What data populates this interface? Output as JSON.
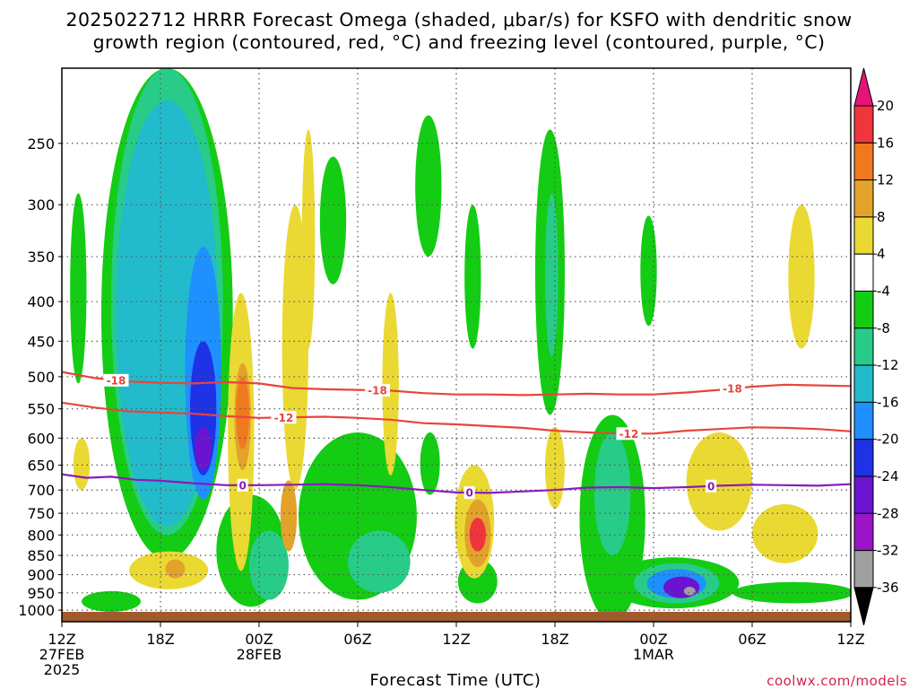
{
  "title": {
    "line1": "2025022712 HRRR Forecast Omega (shaded, μbar/s) for KSFO with dendritic snow",
    "line2": "growth region (contoured, red, °C) and freezing level (contoured, purple, °C)"
  },
  "credit": "coolwx.com/models",
  "chart_data": {
    "type": "heatmap",
    "title": "2025022712 HRRR Forecast Omega (shaded, μbar/s) for KSFO with dendritic snow growth region (contoured, red, °C) and freezing level (contoured, purple, °C)",
    "xlabel": "Forecast Time (UTC)",
    "ylabel": "",
    "x_ticks": [
      {
        "hour": 0,
        "lines": [
          "12Z",
          "27FEB",
          "2025"
        ]
      },
      {
        "hour": 6,
        "lines": [
          "18Z"
        ]
      },
      {
        "hour": 12,
        "lines": [
          "00Z",
          "28FEB"
        ]
      },
      {
        "hour": 18,
        "lines": [
          "06Z"
        ]
      },
      {
        "hour": 24,
        "lines": [
          "12Z"
        ]
      },
      {
        "hour": 30,
        "lines": [
          "18Z"
        ]
      },
      {
        "hour": 36,
        "lines": [
          "00Z",
          "1MAR"
        ]
      },
      {
        "hour": 42,
        "lines": [
          "06Z"
        ]
      },
      {
        "hour": 48,
        "lines": [
          "12Z"
        ]
      }
    ],
    "xlim": [
      0,
      48
    ],
    "y_ticks": [
      250,
      300,
      350,
      400,
      450,
      500,
      550,
      600,
      650,
      700,
      750,
      800,
      850,
      900,
      950,
      1000
    ],
    "y_axis": "pressure (hPa), log scale, inverted",
    "ylim": [
      1035,
      200
    ],
    "grid": true,
    "colorbar": {
      "labels": [
        "20",
        "16",
        "12",
        "8",
        "4",
        "-4",
        "-8",
        "-12",
        "-16",
        "-20",
        "-24",
        "-28",
        "-32",
        "-36"
      ],
      "levels": [
        {
          "lo": 20,
          "hi": null,
          "color": "#e6137a"
        },
        {
          "lo": 16,
          "hi": 20,
          "color": "#f0353d"
        },
        {
          "lo": 12,
          "hi": 16,
          "color": "#f0781e"
        },
        {
          "lo": 8,
          "hi": 12,
          "color": "#e3a32b"
        },
        {
          "lo": 4,
          "hi": 8,
          "color": "#ebd933"
        },
        {
          "lo": -4,
          "hi": 4,
          "color": "#ffffff"
        },
        {
          "lo": -8,
          "hi": -4,
          "color": "#14cc14"
        },
        {
          "lo": -12,
          "hi": -8,
          "color": "#28cc88"
        },
        {
          "lo": -16,
          "hi": -12,
          "color": "#22bbcc"
        },
        {
          "lo": -20,
          "hi": -16,
          "color": "#1e90ff"
        },
        {
          "lo": -24,
          "hi": -20,
          "color": "#1e32e6"
        },
        {
          "lo": -28,
          "hi": -24,
          "color": "#6a14d2"
        },
        {
          "lo": -32,
          "hi": -28,
          "color": "#9b14c8"
        },
        {
          "lo": -36,
          "hi": -32,
          "color": "#a0a0a0"
        },
        {
          "lo": null,
          "hi": -36,
          "color": "#000000"
        }
      ]
    },
    "surface_color": "#a05a2c",
    "contours": [
      {
        "name": "-18",
        "color": "#e8443c",
        "labels": [
          {
            "hour": 3.3,
            "text": "-18"
          },
          {
            "hour": 19.2,
            "text": "-18"
          },
          {
            "hour": 40.8,
            "text": "-18"
          }
        ],
        "points": [
          [
            0,
            493
          ],
          [
            2,
            502
          ],
          [
            4,
            507
          ],
          [
            6,
            509
          ],
          [
            8,
            510
          ],
          [
            10,
            508
          ],
          [
            12,
            510
          ],
          [
            14,
            517
          ],
          [
            16,
            519
          ],
          [
            18,
            520
          ],
          [
            20,
            521
          ],
          [
            22,
            525
          ],
          [
            24,
            527
          ],
          [
            26,
            527
          ],
          [
            28,
            528
          ],
          [
            30,
            527
          ],
          [
            32,
            526
          ],
          [
            34,
            527
          ],
          [
            36,
            527
          ],
          [
            38,
            524
          ],
          [
            40,
            520
          ],
          [
            42,
            515
          ],
          [
            44,
            512
          ],
          [
            46,
            513
          ],
          [
            48,
            514
          ]
        ]
      },
      {
        "name": "-12",
        "color": "#e8443c",
        "labels": [
          {
            "hour": 13.5,
            "text": "-12"
          },
          {
            "hour": 34.5,
            "text": "-12"
          }
        ],
        "points": [
          [
            0,
            540
          ],
          [
            2,
            548
          ],
          [
            4,
            554
          ],
          [
            6,
            556
          ],
          [
            8,
            558
          ],
          [
            10,
            562
          ],
          [
            12,
            565
          ],
          [
            14,
            564
          ],
          [
            16,
            563
          ],
          [
            18,
            565
          ],
          [
            20,
            568
          ],
          [
            22,
            574
          ],
          [
            24,
            576
          ],
          [
            26,
            579
          ],
          [
            28,
            582
          ],
          [
            30,
            587
          ],
          [
            32,
            590
          ],
          [
            34,
            592
          ],
          [
            36,
            592
          ],
          [
            38,
            587
          ],
          [
            40,
            584
          ],
          [
            42,
            581
          ],
          [
            44,
            582
          ],
          [
            46,
            584
          ],
          [
            48,
            588
          ]
        ]
      },
      {
        "name": "0",
        "color": "#8a1ab8",
        "labels": [
          {
            "hour": 11,
            "text": "0"
          },
          {
            "hour": 24.8,
            "text": "0"
          },
          {
            "hour": 39.5,
            "text": "0"
          }
        ],
        "points": [
          [
            0,
            668
          ],
          [
            1.5,
            675
          ],
          [
            3,
            673
          ],
          [
            4.5,
            679
          ],
          [
            6,
            681
          ],
          [
            8,
            686
          ],
          [
            10,
            690
          ],
          [
            12,
            690
          ],
          [
            14,
            689
          ],
          [
            16,
            688
          ],
          [
            18,
            690
          ],
          [
            20,
            694
          ],
          [
            22,
            700
          ],
          [
            24,
            705
          ],
          [
            26,
            706
          ],
          [
            28,
            703
          ],
          [
            30,
            700
          ],
          [
            32,
            695
          ],
          [
            34,
            694
          ],
          [
            36,
            696
          ],
          [
            38,
            694
          ],
          [
            40,
            691
          ],
          [
            42,
            689
          ],
          [
            44,
            690
          ],
          [
            46,
            691
          ],
          [
            48,
            688
          ]
        ]
      }
    ],
    "shaded_regions": [
      {
        "level": -4,
        "center": [
          6.4,
          490
        ],
        "radius": [
          4.0,
          370
        ]
      },
      {
        "level": -8,
        "center": [
          6.4,
          480
        ],
        "radius": [
          3.4,
          320
        ]
      },
      {
        "level": -12,
        "center": [
          6.4,
          500
        ],
        "radius": [
          3.1,
          280
        ]
      },
      {
        "level": -16,
        "center": [
          8.6,
          530
        ],
        "radius": [
          1.1,
          190
        ]
      },
      {
        "level": -20,
        "center": [
          8.6,
          560
        ],
        "radius": [
          0.8,
          110
        ]
      },
      {
        "level": -24,
        "center": [
          8.6,
          620
        ],
        "radius": [
          0.5,
          40
        ]
      },
      {
        "level": -4,
        "center": [
          1.0,
          400
        ],
        "radius": [
          0.5,
          110
        ]
      },
      {
        "level": -4,
        "center": [
          3.0,
          975
        ],
        "radius": [
          1.8,
          30
        ]
      },
      {
        "level": -4,
        "center": [
          11.5,
          850
        ],
        "radius": [
          2.1,
          140
        ]
      },
      {
        "level": -8,
        "center": [
          12.6,
          880
        ],
        "radius": [
          1.2,
          90
        ]
      },
      {
        "level": -4,
        "center": [
          18.0,
          780
        ],
        "radius": [
          3.6,
          190
        ]
      },
      {
        "level": -8,
        "center": [
          19.3,
          870
        ],
        "radius": [
          1.9,
          80
        ]
      },
      {
        "level": -4,
        "center": [
          16.5,
          320
        ],
        "radius": [
          0.8,
          60
        ]
      },
      {
        "level": -4,
        "center": [
          22.3,
          290
        ],
        "radius": [
          0.8,
          60
        ]
      },
      {
        "level": -4,
        "center": [
          22.4,
          650
        ],
        "radius": [
          0.6,
          60
        ]
      },
      {
        "level": -4,
        "center": [
          25.3,
          920
        ],
        "radius": [
          1.2,
          60
        ]
      },
      {
        "level": -4,
        "center": [
          25.0,
          380
        ],
        "radius": [
          0.5,
          80
        ]
      },
      {
        "level": -4,
        "center": [
          29.7,
          400
        ],
        "radius": [
          0.9,
          160
        ]
      },
      {
        "level": -8,
        "center": [
          29.8,
          380
        ],
        "radius": [
          0.4,
          90
        ]
      },
      {
        "level": -4,
        "center": [
          33.5,
          800
        ],
        "radius": [
          2.0,
          240
        ]
      },
      {
        "level": -8,
        "center": [
          33.5,
          720
        ],
        "radius": [
          1.1,
          130
        ]
      },
      {
        "level": -4,
        "center": [
          37.2,
          925
        ],
        "radius": [
          4.0,
          70
        ]
      },
      {
        "level": -8,
        "center": [
          37.4,
          925
        ],
        "radius": [
          2.6,
          55
        ]
      },
      {
        "level": -16,
        "center": [
          37.4,
          925
        ],
        "radius": [
          1.8,
          40
        ]
      },
      {
        "level": -24,
        "center": [
          37.7,
          935
        ],
        "radius": [
          1.1,
          30
        ]
      },
      {
        "level": -32,
        "center": [
          38.2,
          945
        ],
        "radius": [
          0.35,
          12
        ]
      },
      {
        "level": -4,
        "center": [
          44.5,
          950
        ],
        "radius": [
          3.7,
          30
        ]
      },
      {
        "level": -4,
        "center": [
          35.7,
          370
        ],
        "radius": [
          0.5,
          60
        ]
      },
      {
        "level": 4,
        "center": [
          10.9,
          640
        ],
        "radius": [
          0.8,
          250
        ]
      },
      {
        "level": 8,
        "center": [
          11.0,
          570
        ],
        "radius": [
          0.5,
          90
        ]
      },
      {
        "level": 12,
        "center": [
          11.0,
          560
        ],
        "radius": [
          0.4,
          60
        ]
      },
      {
        "level": 4,
        "center": [
          14.2,
          500
        ],
        "radius": [
          0.8,
          200
        ]
      },
      {
        "level": 8,
        "center": [
          13.8,
          760
        ],
        "radius": [
          0.5,
          80
        ]
      },
      {
        "level": 4,
        "center": [
          15.0,
          350
        ],
        "radius": [
          0.4,
          110
        ]
      },
      {
        "level": 4,
        "center": [
          20.0,
          530
        ],
        "radius": [
          0.5,
          140
        ]
      },
      {
        "level": 4,
        "center": [
          25.1,
          780
        ],
        "radius": [
          1.2,
          130
        ]
      },
      {
        "level": 8,
        "center": [
          25.3,
          800
        ],
        "radius": [
          0.8,
          80
        ]
      },
      {
        "level": 16,
        "center": [
          25.3,
          800
        ],
        "radius": [
          0.5,
          40
        ]
      },
      {
        "level": 4,
        "center": [
          6.5,
          890
        ],
        "radius": [
          2.4,
          50
        ]
      },
      {
        "level": 8,
        "center": [
          6.9,
          885
        ],
        "radius": [
          0.6,
          25
        ]
      },
      {
        "level": 4,
        "center": [
          30.0,
          660
        ],
        "radius": [
          0.6,
          80
        ]
      },
      {
        "level": 4,
        "center": [
          40.0,
          690
        ],
        "radius": [
          2.0,
          100
        ]
      },
      {
        "level": 4,
        "center": [
          45.0,
          380
        ],
        "radius": [
          0.8,
          80
        ]
      },
      {
        "level": 4,
        "center": [
          44.0,
          800
        ],
        "radius": [
          2.0,
          70
        ]
      },
      {
        "level": 4,
        "center": [
          1.2,
          650
        ],
        "radius": [
          0.5,
          50
        ]
      }
    ]
  }
}
